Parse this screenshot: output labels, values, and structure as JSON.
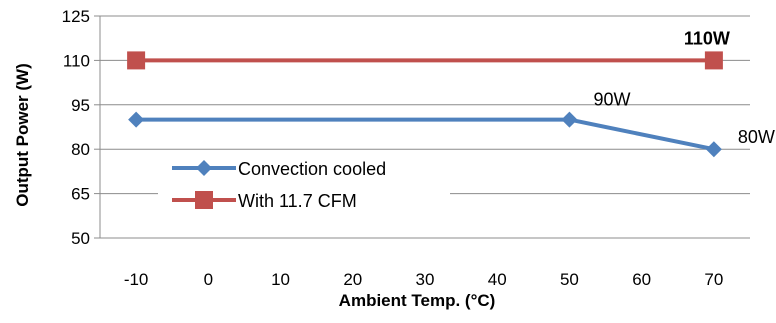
{
  "chart_data": {
    "type": "line",
    "xlabel": "Ambient Temp. (°C)",
    "ylabel": "Output Power (W)",
    "x_ticks": [
      -10,
      0,
      10,
      20,
      30,
      40,
      50,
      60,
      70
    ],
    "y_ticks": [
      50,
      65,
      80,
      95,
      110,
      125
    ],
    "xlim": [
      -15,
      75
    ],
    "ylim": [
      50,
      125
    ],
    "grid": "horizontal",
    "legend_position": "lower-left",
    "series": [
      {
        "name": "Convection cooled",
        "color": "#4f81bd",
        "marker": "diamond",
        "points": [
          [
            -10,
            90
          ],
          [
            50,
            90
          ],
          [
            70,
            80
          ]
        ]
      },
      {
        "name": "With 11.7 CFM",
        "color": "#c0504d",
        "marker": "square",
        "points": [
          [
            -10,
            110
          ],
          [
            70,
            110
          ]
        ]
      }
    ],
    "annotations": [
      {
        "text": "110W",
        "x": 70,
        "y": 110,
        "color": "#ff0000",
        "bold": true
      },
      {
        "text": "90W",
        "x": 50,
        "y": 90,
        "color": "#000000",
        "bold": false
      },
      {
        "text": "80W",
        "x": 70,
        "y": 80,
        "color": "#000000",
        "bold": false
      }
    ]
  }
}
